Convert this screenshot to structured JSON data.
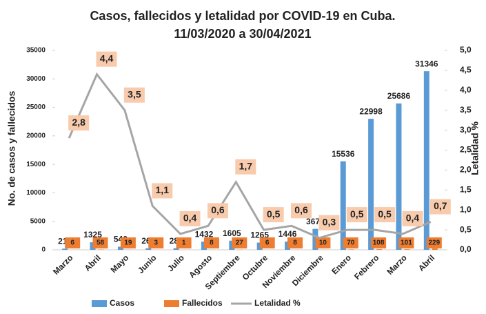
{
  "chart_data": {
    "type": "bar",
    "title": [
      "Casos, fallecidos y letalidad por COVID-19 en Cuba.",
      "11/03/2020 a 30/04/2021"
    ],
    "y_label": "No. de casos  y fallecidos",
    "y2_label": "Letalidad %",
    "categories": [
      "Marzo",
      "Abril",
      "Mayo",
      "Junio",
      "Julio",
      "Agosto",
      "Septiembre",
      "Octubre",
      "Noviembre",
      "Diciembre",
      "Enero",
      "Febrero",
      "Marzo",
      "Abril"
    ],
    "series": [
      {
        "name": "Casos",
        "color": "#5b9bd5",
        "values": [
          212,
          1325,
          546,
          265,
          285,
          1432,
          1605,
          1265,
          1446,
          3675,
          15536,
          22998,
          25686,
          31346
        ]
      },
      {
        "name": "Fallecidos",
        "color": "#ed7d31",
        "values": [
          6,
          58,
          19,
          3,
          1,
          8,
          27,
          6,
          8,
          10,
          70,
          108,
          101,
          229
        ]
      },
      {
        "name": "Letalidad %",
        "color": "#a5a5a5",
        "type": "line",
        "axis": "y2",
        "values": [
          2.8,
          4.4,
          3.5,
          1.1,
          0.4,
          0.6,
          1.7,
          0.5,
          0.6,
          0.3,
          0.5,
          0.5,
          0.4,
          0.7
        ],
        "value_labels": [
          "2,8",
          "4,4",
          "3,5",
          "1,1",
          "0,4",
          "0,6",
          "1,7",
          "0,5",
          "0,6",
          "0,3",
          "0,5",
          "0,5",
          "0,4",
          "0,7"
        ]
      }
    ],
    "ylim": [
      0,
      35000
    ],
    "yticks": [
      0,
      5000,
      10000,
      15000,
      20000,
      25000,
      30000,
      35000
    ],
    "y2lim": [
      0,
      5
    ],
    "y2ticks": [
      {
        "value": 0,
        "label": "0,0"
      },
      {
        "value": 0.5,
        "label": "0,5"
      },
      {
        "value": 1,
        "label": "1,0"
      },
      {
        "value": 1.5,
        "label": "1,5"
      },
      {
        "value": 2,
        "label": "2,0"
      },
      {
        "value": 2.5,
        "label": "2,5"
      },
      {
        "value": 3,
        "label": "3,0"
      },
      {
        "value": 3.5,
        "label": "3,5"
      },
      {
        "value": 4,
        "label": "4,0"
      },
      {
        "value": 4.5,
        "label": "4,5"
      },
      {
        "value": 5,
        "label": "5,0"
      }
    ],
    "grid": false,
    "legend": "bottom"
  }
}
